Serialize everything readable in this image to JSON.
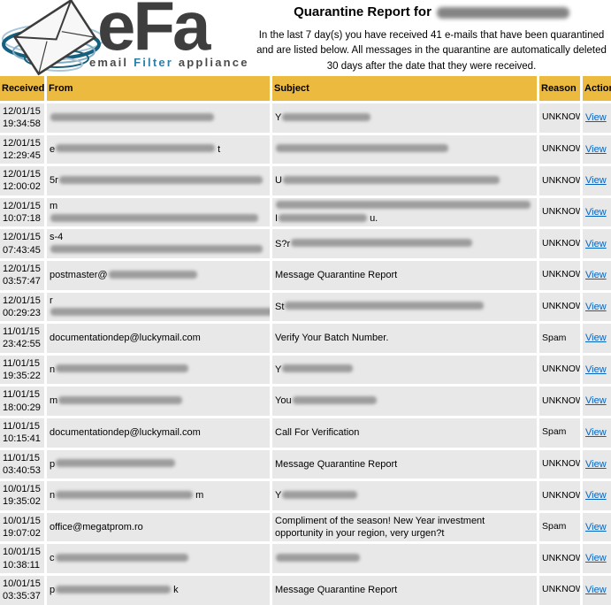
{
  "logo": {
    "efa": "eFa",
    "tagline_email": "email",
    "tagline_filter": "Filter",
    "tagline_appliance": "appliance"
  },
  "header": {
    "title_prefix": "Quarantine Report for",
    "recipient_redacted": true,
    "intro": "In the last 7 day(s) you have received 41 e-mails that have been quarantined and are listed below. All messages in the quarantine are automatically deleted 30 days after the date that they were received."
  },
  "colors": {
    "table_header_gold": "#edba40",
    "row_gray": "#e8e8e8",
    "link_blue": "#0563c1",
    "logo_teal_dark": "#16607f",
    "logo_teal_light": "#a9c7d8",
    "logo_text_gray": "#3e3e3e",
    "tagline_filter_teal": "#2e7ea8"
  },
  "table": {
    "columns": [
      "Received",
      "From",
      "Subject",
      "Reason",
      "Action"
    ],
    "view_label": "View",
    "rows": [
      {
        "date": "12/01/15",
        "time": "19:34:58",
        "from": [
          {
            "b": 185
          }
        ],
        "subject": [
          {
            "t": "Y"
          },
          {
            "b": 100
          }
        ],
        "reason": "UNKNOWN"
      },
      {
        "date": "12/01/15",
        "time": "12:29:45",
        "from": [
          {
            "t": "e"
          },
          {
            "b": 180
          },
          {
            "t": "t"
          }
        ],
        "subject": [
          {
            "b": 195
          }
        ],
        "reason": "UNKNOWN"
      },
      {
        "date": "12/01/15",
        "time": "12:00:02",
        "from": [
          {
            "t": "5r"
          },
          {
            "b": 230
          }
        ],
        "subject": [
          {
            "t": "U"
          },
          {
            "b": 245
          }
        ],
        "reason": "UNKNOWN"
      },
      {
        "date": "12/01/15",
        "time": "10:07:18",
        "from": [
          {
            "t": "m"
          },
          {
            "b": 235
          }
        ],
        "subject": [
          {
            "b": 288
          },
          {
            "nl": true
          },
          {
            "t": "I"
          },
          {
            "b": 100
          },
          {
            "t": "u."
          }
        ],
        "reason": "UNKNOWN"
      },
      {
        "date": "12/01/15",
        "time": "07:43:45",
        "from": [
          {
            "t": "s-4"
          },
          {
            "b": 240
          }
        ],
        "subject": [
          {
            "t": "S?r"
          },
          {
            "b": 205
          }
        ],
        "reason": "UNKNOWN"
      },
      {
        "date": "12/01/15",
        "time": "03:57:47",
        "from": [
          {
            "t": "postmaster@"
          },
          {
            "b": 100
          }
        ],
        "subject": [
          {
            "t": "Message Quarantine Report"
          }
        ],
        "reason": "UNKNOWN"
      },
      {
        "date": "12/01/15",
        "time": "00:29:23",
        "from": [
          {
            "t": "r"
          },
          {
            "b": 285
          }
        ],
        "subject": [
          {
            "t": "St"
          },
          {
            "b": 225
          }
        ],
        "reason": "UNKNOWN"
      },
      {
        "date": "11/01/15",
        "time": "23:42:55",
        "from": [
          {
            "t": "documentationdep@luckymail.com"
          }
        ],
        "subject": [
          {
            "t": "Verify Your Batch Number."
          }
        ],
        "reason": "Spam"
      },
      {
        "date": "11/01/15",
        "time": "19:35:22",
        "from": [
          {
            "t": "n"
          },
          {
            "b": 150
          }
        ],
        "subject": [
          {
            "t": "Y"
          },
          {
            "b": 80
          }
        ],
        "reason": "UNKNOWN"
      },
      {
        "date": "11/01/15",
        "time": "18:00:29",
        "from": [
          {
            "t": "m"
          },
          {
            "b": 140
          }
        ],
        "subject": [
          {
            "t": "You"
          },
          {
            "b": 95
          }
        ],
        "reason": "UNKNOWN"
      },
      {
        "date": "11/01/15",
        "time": "10:15:41",
        "from": [
          {
            "t": "documentationdep@luckymail.com"
          }
        ],
        "subject": [
          {
            "t": "Call For Verification"
          }
        ],
        "reason": "Spam"
      },
      {
        "date": "11/01/15",
        "time": "03:40:53",
        "from": [
          {
            "t": "p"
          },
          {
            "b": 135
          }
        ],
        "subject": [
          {
            "t": "Message Quarantine Report"
          }
        ],
        "reason": "UNKNOWN"
      },
      {
        "date": "10/01/15",
        "time": "19:35:02",
        "from": [
          {
            "t": "n"
          },
          {
            "b": 155
          },
          {
            "t": "m"
          }
        ],
        "subject": [
          {
            "t": "Y"
          },
          {
            "b": 85
          }
        ],
        "reason": "UNKNOWN"
      },
      {
        "date": "10/01/15",
        "time": "19:07:02",
        "from": [
          {
            "t": "office@megatprom.ro"
          }
        ],
        "subject": [
          {
            "t": "Compliment of the season! New Year investment opportunity in your region, very urgen?t"
          }
        ],
        "reason": "Spam"
      },
      {
        "date": "10/01/15",
        "time": "10:38:11",
        "from": [
          {
            "t": "c"
          },
          {
            "b": 150
          }
        ],
        "subject": [
          {
            "b": 95
          }
        ],
        "reason": "UNKNOWN"
      },
      {
        "date": "10/01/15",
        "time": "03:35:37",
        "from": [
          {
            "t": "p"
          },
          {
            "b": 130
          },
          {
            "t": "k"
          }
        ],
        "subject": [
          {
            "t": "Message Quarantine Report"
          }
        ],
        "reason": "UNKNOWN"
      }
    ]
  }
}
